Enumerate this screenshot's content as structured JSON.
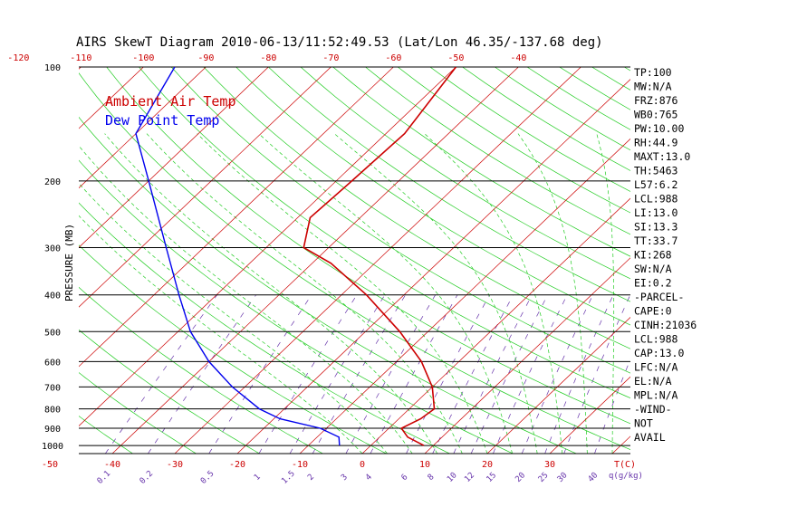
{
  "chart_data": {
    "type": "line",
    "title": "AIRS SkewT Diagram 2010-06-13/11:52:49.53 (Lat/Lon 46.35/-137.68 deg)",
    "ylabel": "PRESSURE (MB)",
    "xlabel": "T(C)",
    "mixing_ratio_label": "q(g/kg)",
    "y_scale": "log",
    "y_inverted": true,
    "ylim": [
      1050,
      100
    ],
    "pressure_ticks": [
      100,
      200,
      300,
      400,
      500,
      600,
      700,
      800,
      900,
      1000
    ],
    "top_temp_ticks": [
      -120,
      -110,
      -100,
      -90,
      -80,
      -70,
      -60,
      -50,
      -40
    ],
    "bottom_temp_ticks": [
      -50,
      -40,
      -30,
      -20,
      -10,
      0,
      10,
      20,
      30
    ],
    "mixing_ratio_ticks": [
      "0.1",
      "0.2",
      "0.5",
      "1",
      "1.5",
      "2",
      "3",
      "4",
      "6",
      "8",
      "10",
      "12",
      "15",
      "20",
      "25",
      "30",
      "40"
    ],
    "legend": [
      {
        "label": "Ambient Air Temp",
        "color": "#cc0000"
      },
      {
        "label": "Dew Point Temp",
        "color": "#0000ee"
      }
    ],
    "series": [
      {
        "name": "Ambient Air Temp",
        "color": "#cc0000",
        "points": [
          {
            "p": 1000,
            "t": 8.5
          },
          {
            "p": 950,
            "t": 4.5
          },
          {
            "p": 900,
            "t": 2.0
          },
          {
            "p": 850,
            "t": 3.5
          },
          {
            "p": 800,
            "t": 4.0
          },
          {
            "p": 700,
            "t": 0.0
          },
          {
            "p": 600,
            "t": -6.0
          },
          {
            "p": 500,
            "t": -14.5
          },
          {
            "p": 400,
            "t": -26.0
          },
          {
            "p": 330,
            "t": -37.0
          },
          {
            "p": 300,
            "t": -44.0
          },
          {
            "p": 250,
            "t": -48.0
          },
          {
            "p": 200,
            "t": -47.5
          },
          {
            "p": 150,
            "t": -47.0
          },
          {
            "p": 100,
            "t": -50.0
          }
        ]
      },
      {
        "name": "Dew Point Temp",
        "color": "#0000ee",
        "points": [
          {
            "p": 1000,
            "t": -5.0
          },
          {
            "p": 950,
            "t": -6.5
          },
          {
            "p": 900,
            "t": -11.0
          },
          {
            "p": 850,
            "t": -19.0
          },
          {
            "p": 800,
            "t": -24.0
          },
          {
            "p": 700,
            "t": -32.0
          },
          {
            "p": 600,
            "t": -40.0
          },
          {
            "p": 500,
            "t": -48.0
          },
          {
            "p": 400,
            "t": -56.0
          },
          {
            "p": 300,
            "t": -66.0
          },
          {
            "p": 200,
            "t": -80.0
          },
          {
            "p": 150,
            "t": -90.0
          },
          {
            "p": 100,
            "t": -95.0
          }
        ]
      }
    ],
    "indices": [
      "TP:100",
      "MW:N/A",
      "FRZ:876",
      "WB0:765",
      "PW:10.00",
      "RH:44.9",
      "MAXT:13.0",
      "TH:5463",
      "L57:6.2",
      "LCL:988",
      "LI:13.0",
      "SI:13.3",
      "TT:33.7",
      "KI:268",
      "SW:N/A",
      "EI:0.2",
      "-PARCEL-",
      "CAPE:0",
      "CINH:21036",
      "LCL:988",
      "CAP:13.0",
      "LFC:N/A",
      "EL:N/A",
      "MPL:N/A",
      "-WIND-",
      "NOT",
      "AVAIL"
    ],
    "grid": true
  }
}
